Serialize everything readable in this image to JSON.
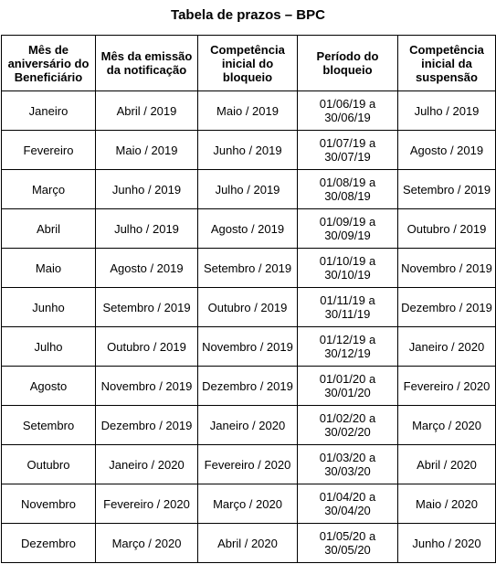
{
  "title": "Tabela de prazos – BPC",
  "headers": [
    "Mês de aniversário do Beneficiário",
    "Mês da emissão da notificação",
    "Competência inicial do bloqueio",
    "Período do bloqueio",
    "Competência inicial da suspensão"
  ],
  "rows": [
    [
      "Janeiro",
      "Abril / 2019",
      "Maio / 2019",
      "01/06/19 a 30/06/19",
      "Julho / 2019"
    ],
    [
      "Fevereiro",
      "Maio / 2019",
      "Junho / 2019",
      "01/07/19 a 30/07/19",
      "Agosto / 2019"
    ],
    [
      "Março",
      "Junho / 2019",
      "Julho / 2019",
      "01/08/19 a 30/08/19",
      "Setembro / 2019"
    ],
    [
      "Abril",
      "Julho / 2019",
      "Agosto / 2019",
      "01/09/19 a 30/09/19",
      "Outubro / 2019"
    ],
    [
      "Maio",
      "Agosto / 2019",
      "Setembro / 2019",
      "01/10/19 a 30/10/19",
      "Novembro / 2019"
    ],
    [
      "Junho",
      "Setembro / 2019",
      "Outubro / 2019",
      "01/11/19 a 30/11/19",
      "Dezembro / 2019"
    ],
    [
      "Julho",
      "Outubro / 2019",
      "Novembro / 2019",
      "01/12/19 a 30/12/19",
      "Janeiro / 2020"
    ],
    [
      "Agosto",
      "Novembro / 2019",
      "Dezembro / 2019",
      "01/01/20 a 30/01/20",
      "Fevereiro / 2020"
    ],
    [
      "Setembro",
      "Dezembro / 2019",
      "Janeiro / 2020",
      "01/02/20 a 30/02/20",
      "Março / 2020"
    ],
    [
      "Outubro",
      "Janeiro / 2020",
      "Fevereiro / 2020",
      "01/03/20 a 30/03/20",
      "Abril / 2020"
    ],
    [
      "Novembro",
      "Fevereiro / 2020",
      "Março / 2020",
      "01/04/20 a 30/04/20",
      "Maio / 2020"
    ],
    [
      "Dezembro",
      "Março / 2020",
      "Abril / 2020",
      "01/05/20 a 30/05/20",
      "Junho / 2020"
    ]
  ]
}
